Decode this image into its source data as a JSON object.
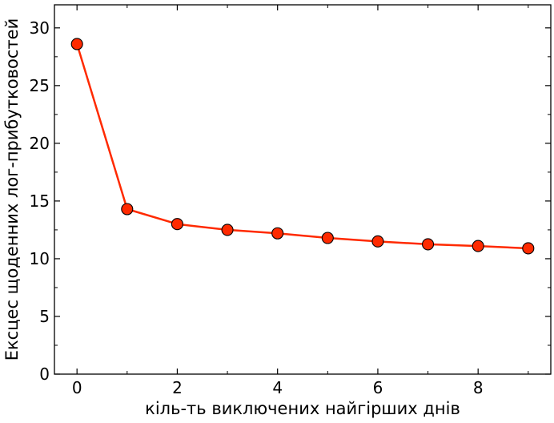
{
  "chart_data": {
    "type": "line",
    "title": "",
    "xlabel": "кіль-ть виключених найгірших днів",
    "ylabel": "Ексцес щоденних лог-прибутковостей",
    "xlim": [
      -0.45,
      9.45
    ],
    "ylim": [
      0,
      32
    ],
    "x_ticks": [
      0,
      2,
      4,
      6,
      8
    ],
    "x_minor_ticks": [
      1,
      3,
      5,
      7,
      9
    ],
    "y_ticks": [
      0,
      5,
      10,
      15,
      20,
      25,
      30
    ],
    "y_minor_ticks": [
      2.5,
      7.5,
      12.5,
      17.5,
      22.5,
      27.5
    ],
    "grid": false,
    "legend": "none",
    "series": [
      {
        "x": [
          0,
          1,
          2,
          3,
          4,
          5,
          6,
          7,
          8,
          9
        ],
        "values": [
          28.6,
          14.3,
          13.0,
          12.5,
          12.2,
          11.8,
          11.5,
          11.25,
          11.1,
          10.9
        ],
        "color": "#ff2a00",
        "marker_fill": "#ff2a00",
        "marker_edge": "#000000"
      }
    ]
  }
}
